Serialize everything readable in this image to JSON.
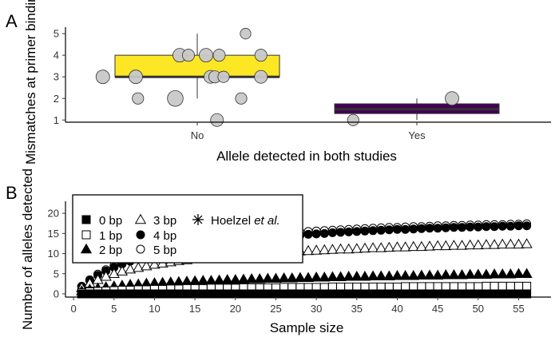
{
  "chart_data": [
    {
      "panel": "A",
      "type": "box",
      "xlabel": "Allele detected in both studies",
      "ylabel": "Mismatches at primer binding",
      "ylim": [
        0.9,
        5.3
      ],
      "yticks": [
        1,
        2,
        3,
        4,
        5
      ],
      "categories": [
        "No",
        "Yes"
      ],
      "boxes": [
        {
          "category": "No",
          "q1": 3,
          "median": 3,
          "q3": 4,
          "whisker_low": 2,
          "whisker_high": 5,
          "fill": "#fde725"
        },
        {
          "category": "Yes",
          "q1": 1.3,
          "median": 1.5,
          "q3": 1.75,
          "whisker_low": 1,
          "whisker_high": 2,
          "fill": "#440154"
        }
      ],
      "points": [
        {
          "category": "No",
          "jitter": -0.43,
          "y": 3,
          "size": 1.0
        },
        {
          "category": "No",
          "jitter": -0.28,
          "y": 3,
          "size": 1.0
        },
        {
          "category": "No",
          "jitter": -0.27,
          "y": 2,
          "size": 0.7
        },
        {
          "category": "No",
          "jitter": -0.1,
          "y": 2,
          "size": 1.3
        },
        {
          "category": "No",
          "jitter": -0.08,
          "y": 4,
          "size": 1.0
        },
        {
          "category": "No",
          "jitter": -0.04,
          "y": 4,
          "size": 0.8
        },
        {
          "category": "No",
          "jitter": 0.04,
          "y": 4,
          "size": 1.0
        },
        {
          "category": "No",
          "jitter": 0.1,
          "y": 4,
          "size": 0.8
        },
        {
          "category": "No",
          "jitter": 0.06,
          "y": 3,
          "size": 0.9
        },
        {
          "category": "No",
          "jitter": 0.08,
          "y": 3,
          "size": 0.8
        },
        {
          "category": "No",
          "jitter": 0.12,
          "y": 3,
          "size": 0.7
        },
        {
          "category": "No",
          "jitter": 0.09,
          "y": 1,
          "size": 0.9
        },
        {
          "category": "No",
          "jitter": 0.2,
          "y": 2,
          "size": 0.7
        },
        {
          "category": "No",
          "jitter": 0.22,
          "y": 5,
          "size": 0.6
        },
        {
          "category": "No",
          "jitter": 0.29,
          "y": 4,
          "size": 0.8
        },
        {
          "category": "No",
          "jitter": 0.29,
          "y": 3,
          "size": 0.9
        },
        {
          "category": "Yes",
          "jitter": -0.29,
          "y": 1,
          "size": 0.7
        },
        {
          "category": "Yes",
          "jitter": 0.16,
          "y": 2,
          "size": 1.0
        }
      ]
    },
    {
      "panel": "B",
      "type": "scatter",
      "xlabel": "Sample size",
      "ylabel": "Number of alleles detected",
      "xlim": [
        -1,
        59
      ],
      "ylim": [
        -0.8,
        23
      ],
      "xticks": [
        0,
        5,
        10,
        15,
        20,
        25,
        30,
        35,
        40,
        45,
        50,
        55
      ],
      "yticks": [
        0,
        5,
        10,
        15,
        20
      ],
      "x_range": [
        1,
        56
      ],
      "series": [
        {
          "name": "0 bp",
          "marker": "filled-square",
          "values": [
            0,
            0,
            0,
            0,
            0,
            0,
            0,
            0,
            0,
            0,
            0,
            0,
            0,
            0,
            0,
            0,
            0,
            0,
            0,
            0,
            0,
            0,
            0,
            0,
            0,
            0,
            0,
            0,
            0,
            0,
            0,
            0,
            0,
            0,
            0,
            0,
            0,
            0,
            0,
            0,
            0,
            0,
            0,
            0,
            0,
            0,
            0,
            0,
            0,
            0,
            0,
            0,
            0,
            0,
            0,
            0
          ]
        },
        {
          "name": "1 bp",
          "marker": "open-square",
          "values": [
            0.3,
            0.5,
            0.6,
            0.7,
            0.8,
            0.9,
            0.9,
            1.0,
            1.0,
            1.1,
            1.1,
            1.2,
            1.2,
            1.3,
            1.3,
            1.3,
            1.4,
            1.4,
            1.4,
            1.4,
            1.5,
            1.5,
            1.5,
            1.5,
            1.5,
            1.6,
            1.6,
            1.6,
            1.6,
            1.6,
            1.6,
            1.7,
            1.7,
            1.7,
            1.7,
            1.7,
            1.7,
            1.7,
            1.7,
            1.7,
            1.8,
            1.8,
            1.8,
            1.8,
            1.8,
            1.8,
            1.8,
            1.8,
            1.8,
            1.8,
            1.9,
            1.9,
            1.9,
            1.9,
            1.9,
            1.9
          ]
        },
        {
          "name": "2 bp",
          "marker": "filled-triangle",
          "values": [
            0.7,
            1.1,
            1.4,
            1.7,
            1.9,
            2.1,
            2.3,
            2.4,
            2.6,
            2.7,
            2.8,
            2.9,
            3.0,
            3.1,
            3.2,
            3.3,
            3.3,
            3.4,
            3.5,
            3.5,
            3.6,
            3.7,
            3.7,
            3.8,
            3.8,
            3.9,
            3.9,
            4.0,
            4.0,
            4.1,
            4.1,
            4.2,
            4.2,
            4.3,
            4.3,
            4.3,
            4.4,
            4.4,
            4.4,
            4.5,
            4.5,
            4.5,
            4.6,
            4.6,
            4.6,
            4.7,
            4.7,
            4.7,
            4.8,
            4.8,
            4.8,
            4.9,
            4.9,
            4.9,
            5.0,
            5.0
          ]
        },
        {
          "name": "3 bp",
          "marker": "open-triangle",
          "values": [
            1.5,
            2.6,
            3.5,
            4.3,
            5.0,
            5.6,
            6.1,
            6.5,
            6.9,
            7.3,
            7.6,
            7.9,
            8.2,
            8.4,
            8.7,
            8.9,
            9.1,
            9.3,
            9.4,
            9.6,
            9.8,
            9.9,
            10.0,
            10.2,
            10.3,
            10.4,
            10.5,
            10.6,
            10.7,
            10.8,
            10.9,
            11.0,
            11.1,
            11.1,
            11.2,
            11.3,
            11.4,
            11.4,
            11.5,
            11.6,
            11.6,
            11.7,
            11.7,
            11.8,
            11.9,
            11.9,
            12.0,
            12.0,
            12.1,
            12.1,
            12.2,
            12.2,
            12.3,
            12.3,
            12.3,
            12.4
          ]
        },
        {
          "name": "4 bp",
          "marker": "filled-circle",
          "values": [
            1.8,
            3.3,
            4.6,
            5.7,
            6.6,
            7.4,
            8.1,
            8.7,
            9.3,
            9.8,
            10.3,
            10.7,
            11.1,
            11.5,
            11.8,
            12.1,
            12.4,
            12.7,
            12.9,
            13.2,
            13.4,
            13.6,
            13.8,
            14.0,
            14.2,
            14.3,
            14.5,
            14.6,
            14.8,
            14.9,
            15.0,
            15.2,
            15.3,
            15.4,
            15.5,
            15.6,
            15.7,
            15.8,
            15.9,
            16.0,
            16.0,
            16.1,
            16.2,
            16.3,
            16.3,
            16.4,
            16.5,
            16.5,
            16.6,
            16.6,
            16.7,
            16.7,
            16.8,
            16.8,
            16.9,
            16.9
          ]
        },
        {
          "name": "5 bp",
          "marker": "open-circle",
          "values": [
            1.9,
            3.5,
            4.9,
            6.0,
            7.0,
            7.8,
            8.6,
            9.2,
            9.8,
            10.4,
            10.9,
            11.3,
            11.7,
            12.1,
            12.5,
            12.8,
            13.1,
            13.4,
            13.6,
            13.9,
            14.1,
            14.3,
            14.5,
            14.7,
            14.9,
            15.0,
            15.2,
            15.3,
            15.5,
            15.6,
            15.7,
            15.8,
            15.9,
            16.0,
            16.1,
            16.2,
            16.3,
            16.4,
            16.5,
            16.5,
            16.6,
            16.7,
            16.7,
            16.8,
            16.9,
            16.9,
            17.0,
            17.0,
            17.1,
            17.1,
            17.2,
            17.2,
            17.2,
            17.3,
            17.3,
            17.4
          ]
        },
        {
          "name": "Hoelzel et al.",
          "marker": "asterisk",
          "points": []
        }
      ],
      "legend_position": "top-left"
    }
  ]
}
